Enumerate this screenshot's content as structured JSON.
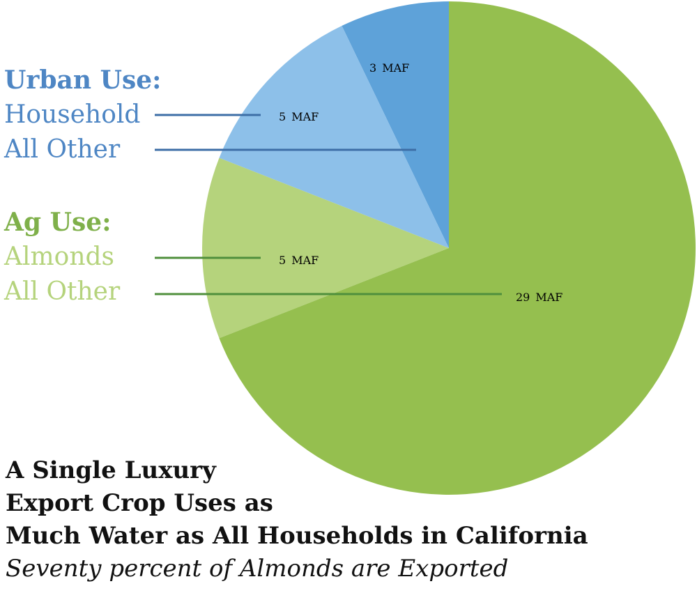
{
  "chart_data": {
    "type": "pie",
    "title_lines": [
      "A Single Luxury",
      "Export Crop Uses as",
      "Much Water as All Households in California"
    ],
    "subtitle": "Seventy percent of Almonds are Exported",
    "unit": "MAF",
    "groups": [
      {
        "name": "Urban Use:",
        "color": "#4e86c4",
        "items": [
          {
            "label": "Household",
            "value": 3,
            "color": "#5ea2d9",
            "line_color": "#3d6ea6"
          },
          {
            "label": "All Other",
            "value": 5,
            "color": "#8dc0e9",
            "line_color": "#3d6ea6"
          }
        ]
      },
      {
        "name": "Ag Use:",
        "color": "#7fb04a",
        "items": [
          {
            "label": "Almonds",
            "value": 5,
            "color": "#b5d37c",
            "line_color": "#4f8f3c"
          },
          {
            "label": "All Other",
            "value": 29,
            "color": "#95bf4f",
            "line_color": "#4f8f3c"
          }
        ]
      }
    ]
  }
}
